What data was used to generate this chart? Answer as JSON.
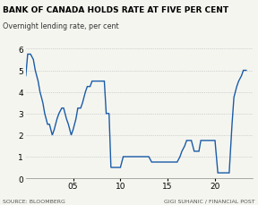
{
  "title": "BANK OF CANADA HOLDS RATE AT FIVE PER CENT",
  "subtitle": "Overnight lending rate, per cent",
  "source_left": "SOURCE: BLOOMBERG",
  "source_right": "GIGI SUHANIC / FINANCIAL POST",
  "line_color": "#1a5ca8",
  "background_color": "#f5f5f0",
  "grid_color": "#b0b0b0",
  "ylim": [
    0,
    6.2
  ],
  "yticks": [
    0,
    1,
    2,
    3,
    4,
    5,
    6
  ],
  "xticks": [
    5,
    10,
    15,
    20
  ],
  "xlim": [
    0,
    24
  ],
  "xlabel_labels": [
    "05",
    "10",
    "15",
    "20"
  ],
  "x": [
    0,
    0.2,
    0.5,
    0.8,
    1.0,
    1.3,
    1.5,
    1.8,
    2.0,
    2.3,
    2.5,
    2.8,
    3.0,
    3.3,
    3.5,
    3.8,
    4.0,
    4.3,
    4.5,
    4.8,
    5.0,
    5.3,
    5.5,
    5.8,
    6.0,
    6.3,
    6.5,
    6.8,
    7.0,
    7.3,
    7.5,
    7.8,
    8.0,
    8.3,
    8.5,
    8.8,
    9.0,
    9.3,
    9.5,
    9.8,
    10.0,
    10.3,
    10.5,
    10.8,
    11.0,
    11.3,
    11.5,
    11.8,
    12.0,
    12.3,
    12.5,
    12.8,
    13.0,
    13.3,
    13.5,
    13.8,
    14.0,
    14.3,
    14.5,
    14.8,
    15.0,
    15.3,
    15.5,
    15.8,
    16.0,
    16.3,
    16.5,
    16.8,
    17.0,
    17.3,
    17.5,
    17.8,
    18.0,
    18.3,
    18.5,
    18.8,
    19.0,
    19.3,
    19.5,
    19.8,
    20.0,
    20.3,
    20.5,
    20.8,
    21.0,
    21.3,
    21.5,
    21.8,
    22.0,
    22.3,
    22.5,
    22.8,
    23.0,
    23.3
  ],
  "y": [
    4.75,
    5.75,
    5.75,
    5.5,
    5.0,
    4.5,
    4.0,
    3.5,
    3.0,
    2.5,
    2.5,
    2.0,
    2.25,
    2.75,
    3.0,
    3.25,
    3.25,
    2.75,
    2.5,
    2.0,
    2.25,
    2.75,
    3.25,
    3.25,
    3.5,
    4.0,
    4.25,
    4.25,
    4.5,
    4.5,
    4.5,
    4.5,
    4.5,
    4.5,
    3.0,
    3.0,
    0.5,
    0.5,
    0.5,
    0.5,
    0.5,
    1.0,
    1.0,
    1.0,
    1.0,
    1.0,
    1.0,
    1.0,
    1.0,
    1.0,
    1.0,
    1.0,
    1.0,
    0.75,
    0.75,
    0.75,
    0.75,
    0.75,
    0.75,
    0.75,
    0.75,
    0.75,
    0.75,
    0.75,
    0.75,
    1.0,
    1.25,
    1.5,
    1.75,
    1.75,
    1.75,
    1.25,
    1.25,
    1.25,
    1.75,
    1.75,
    1.75,
    1.75,
    1.75,
    1.75,
    1.75,
    0.25,
    0.25,
    0.25,
    0.25,
    0.25,
    0.25,
    2.5,
    3.75,
    4.25,
    4.5,
    4.75,
    5.0,
    5.0
  ]
}
